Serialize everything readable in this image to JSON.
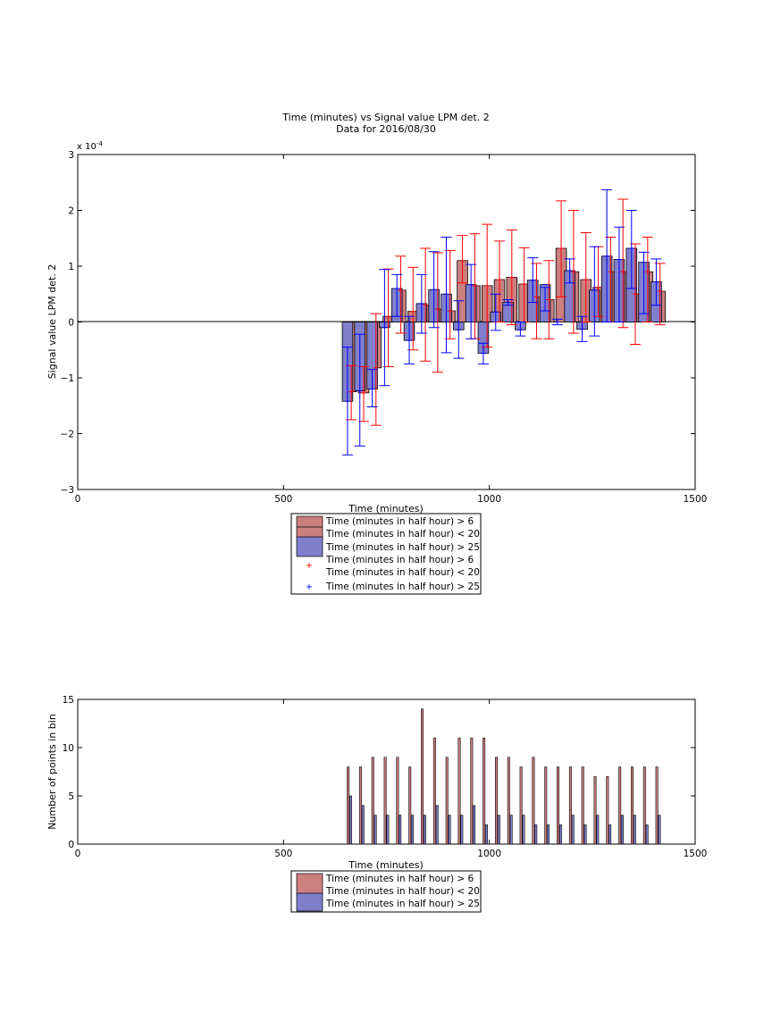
{
  "chart_data": [
    {
      "type": "bar",
      "title": "Time (minutes) vs Signal value LPM det. 2",
      "subtitle": "Data for 2016/08/30",
      "xlabel": "Time (minutes)",
      "ylabel": "Signal value LPM det. 2",
      "y_exponent_label": "x 10",
      "y_exponent": "-4",
      "xlim": [
        0,
        1500
      ],
      "ylim": [
        -3,
        3
      ],
      "y_scale": 0.0001,
      "xticks": [
        "0",
        "500",
        "1000",
        "1500"
      ],
      "yticks": [
        "−3",
        "−2",
        "−1",
        "0",
        "1",
        "2",
        "3"
      ],
      "grid": false,
      "legend_position": "below-axes",
      "x": [
        660,
        690,
        720,
        750,
        780,
        810,
        840,
        870,
        900,
        930,
        960,
        990,
        1020,
        1050,
        1080,
        1110,
        1140,
        1170,
        1200,
        1230,
        1260,
        1290,
        1320,
        1350,
        1380,
        1410
      ],
      "series": [
        {
          "name": "Time (minutes in half hour) > 6\nTime (minutes in half hour) < 20",
          "color": "#cc7f7f",
          "error_color": "#ff0000",
          "values": [
            -1.25,
            -1.27,
            -0.82,
            0.1,
            0.57,
            0.19,
            0.3,
            0.23,
            0.2,
            1.1,
            0.65,
            0.65,
            0.76,
            0.8,
            0.68,
            0.45,
            0.4,
            1.32,
            0.9,
            0.76,
            0.62,
            0.9,
            0.9,
            0.5,
            0.9,
            0.55
          ],
          "err_low": [
            -1.75,
            -1.78,
            -1.85,
            -0.8,
            -0.2,
            -0.5,
            -0.7,
            -0.9,
            -0.3,
            0.7,
            -0.3,
            -0.45,
            0.0,
            -0.05,
            0.0,
            -0.3,
            -0.3,
            0.45,
            -0.2,
            0.0,
            0.1,
            0.0,
            -0.1,
            -0.4,
            0.0,
            -0.05
          ],
          "err_high": [
            -0.78,
            -0.8,
            0.15,
            0.95,
            1.18,
            0.98,
            1.32,
            1.24,
            1.28,
            1.55,
            1.58,
            1.75,
            1.45,
            1.65,
            1.33,
            1.05,
            1.1,
            2.17,
            2.0,
            1.6,
            1.35,
            1.52,
            2.2,
            1.4,
            1.52,
            1.05
          ]
        },
        {
          "name": "Time (minutes in half hour) > 25",
          "color": "#7f7fcc",
          "error_color": "#0000ff",
          "values": [
            -1.42,
            -1.23,
            -1.2,
            -0.1,
            0.6,
            -0.33,
            0.33,
            0.58,
            0.5,
            -0.14,
            0.67,
            -0.56,
            0.18,
            0.35,
            -0.14,
            0.75,
            0.67,
            0.0,
            0.92,
            -0.13,
            0.57,
            1.18,
            1.12,
            1.32,
            1.07,
            0.72
          ],
          "err_low": [
            -2.38,
            -2.22,
            -1.52,
            -1.14,
            0.1,
            -0.75,
            -0.2,
            -0.1,
            -0.55,
            -0.65,
            -0.3,
            -0.75,
            -0.15,
            0.3,
            -0.25,
            0.35,
            0.2,
            -0.05,
            0.7,
            -0.35,
            -0.25,
            0.0,
            0.0,
            0.6,
            0.15,
            0.3
          ],
          "err_high": [
            -0.45,
            -0.22,
            -0.85,
            0.94,
            0.85,
            0.1,
            0.85,
            1.26,
            1.52,
            0.38,
            1.03,
            -0.38,
            0.5,
            0.4,
            0.0,
            1.15,
            0.62,
            0.05,
            1.13,
            0.1,
            1.35,
            2.37,
            1.7,
            2.0,
            1.25,
            1.13
          ]
        }
      ],
      "legend": [
        "Time (minutes in half hour) > 6",
        "Time (minutes in half hour) < 20",
        "Time (minutes in half hour) > 25",
        "Time (minutes in half hour) > 6",
        "Time (minutes in half hour) < 20",
        "Time (minutes in half hour) > 25"
      ]
    },
    {
      "type": "bar",
      "xlabel": "Time (minutes)",
      "ylabel": "Number of points in bin",
      "xlim": [
        0,
        1500
      ],
      "ylim": [
        0,
        15
      ],
      "xticks": [
        "0",
        "500",
        "1000",
        "1500"
      ],
      "yticks": [
        "0",
        "5",
        "10",
        "15"
      ],
      "grid": false,
      "legend_position": "below-axes",
      "x": [
        660,
        690,
        720,
        750,
        780,
        810,
        840,
        870,
        900,
        930,
        960,
        990,
        1020,
        1050,
        1080,
        1110,
        1140,
        1170,
        1200,
        1230,
        1260,
        1290,
        1320,
        1350,
        1380,
        1410
      ],
      "series": [
        {
          "name": "Time (minutes in half hour) > 6\nTime (minutes in half hour) < 20",
          "color": "#cc7f7f",
          "values": [
            8,
            8,
            9,
            9,
            9,
            8,
            14,
            11,
            9,
            11,
            11,
            11,
            9,
            9,
            8,
            9,
            8,
            8,
            8,
            8,
            7,
            7,
            8,
            8,
            8,
            8
          ]
        },
        {
          "name": "Time (minutes in half hour) > 25",
          "color": "#7f7fcc",
          "values": [
            5,
            4,
            3,
            3,
            3,
            3,
            3,
            4,
            3,
            3,
            4,
            2,
            3,
            3,
            3,
            2,
            2,
            2,
            3,
            2,
            3,
            2,
            3,
            3,
            2,
            3
          ]
        }
      ],
      "legend": [
        "Time (minutes in half hour) > 6",
        "Time (minutes in half hour) < 20",
        "Time (minutes in half hour) > 25"
      ]
    }
  ]
}
